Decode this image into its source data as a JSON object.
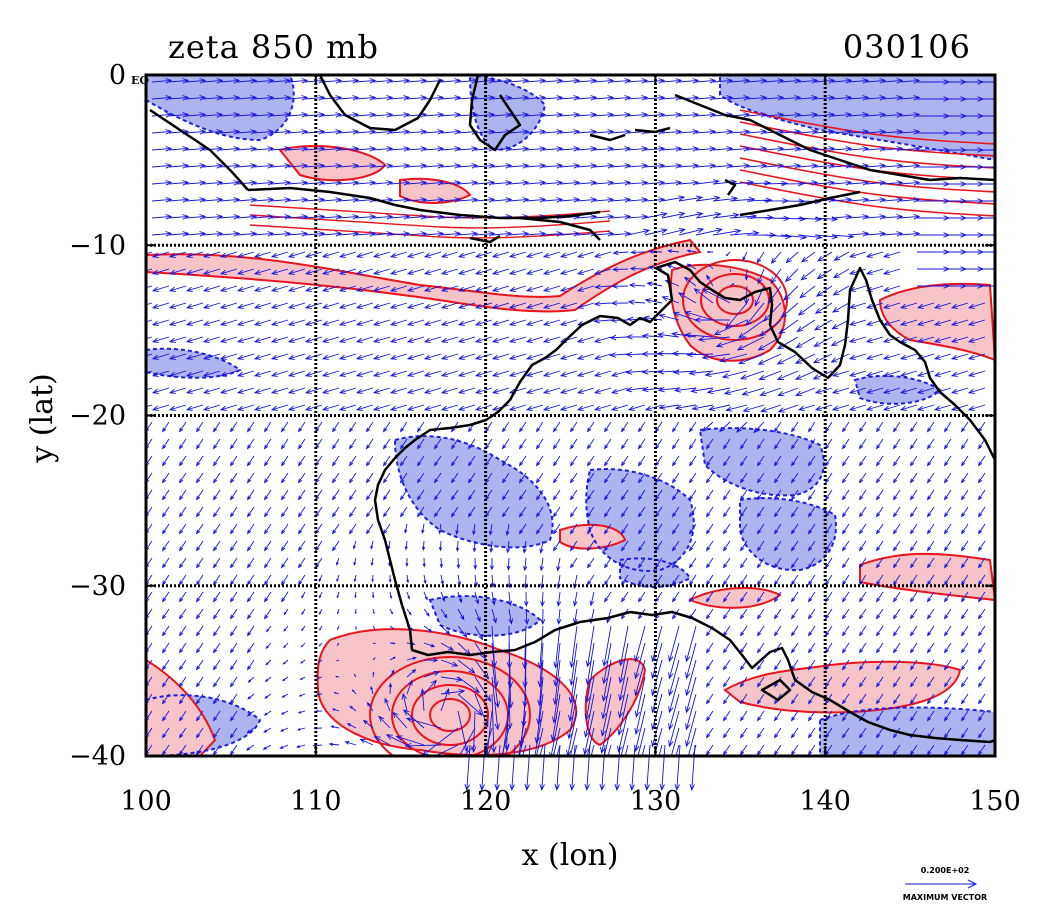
{
  "title": "zeta 850 mb",
  "date": "030106",
  "corner_label": "EQ",
  "xlabel": "x (lon)",
  "ylabel": "y (lat)",
  "x_ticks": [
    {
      "value": 100,
      "label": "100"
    },
    {
      "value": 110,
      "label": "110"
    },
    {
      "value": 120,
      "label": "120"
    },
    {
      "value": 130,
      "label": "130"
    },
    {
      "value": 140,
      "label": "140"
    },
    {
      "value": 150,
      "label": "150"
    }
  ],
  "y_ticks": [
    {
      "value": 0,
      "label": "0"
    },
    {
      "value": -10,
      "label": "−10"
    },
    {
      "value": -20,
      "label": "−20"
    },
    {
      "value": -30,
      "label": "−30"
    },
    {
      "value": -40,
      "label": "−40"
    }
  ],
  "extent": {
    "lon": [
      100,
      150
    ],
    "lat": [
      -40,
      0
    ]
  },
  "reference_vector": {
    "value_label": "0.200E+02",
    "caption": "MAXIMUM VECTOR"
  },
  "colors": {
    "positive_fill": "#f6c4c8",
    "positive_line": "#e8141e",
    "negative_fill": "#aeb4f0",
    "negative_line": "#1e1ee6",
    "vector": "#1414dc",
    "coastline": "#000000",
    "grid": "#000000"
  },
  "grid": {
    "lon": [
      110,
      120,
      130,
      140
    ],
    "lat": [
      -10,
      -20,
      -30
    ],
    "style": "dotted"
  }
}
